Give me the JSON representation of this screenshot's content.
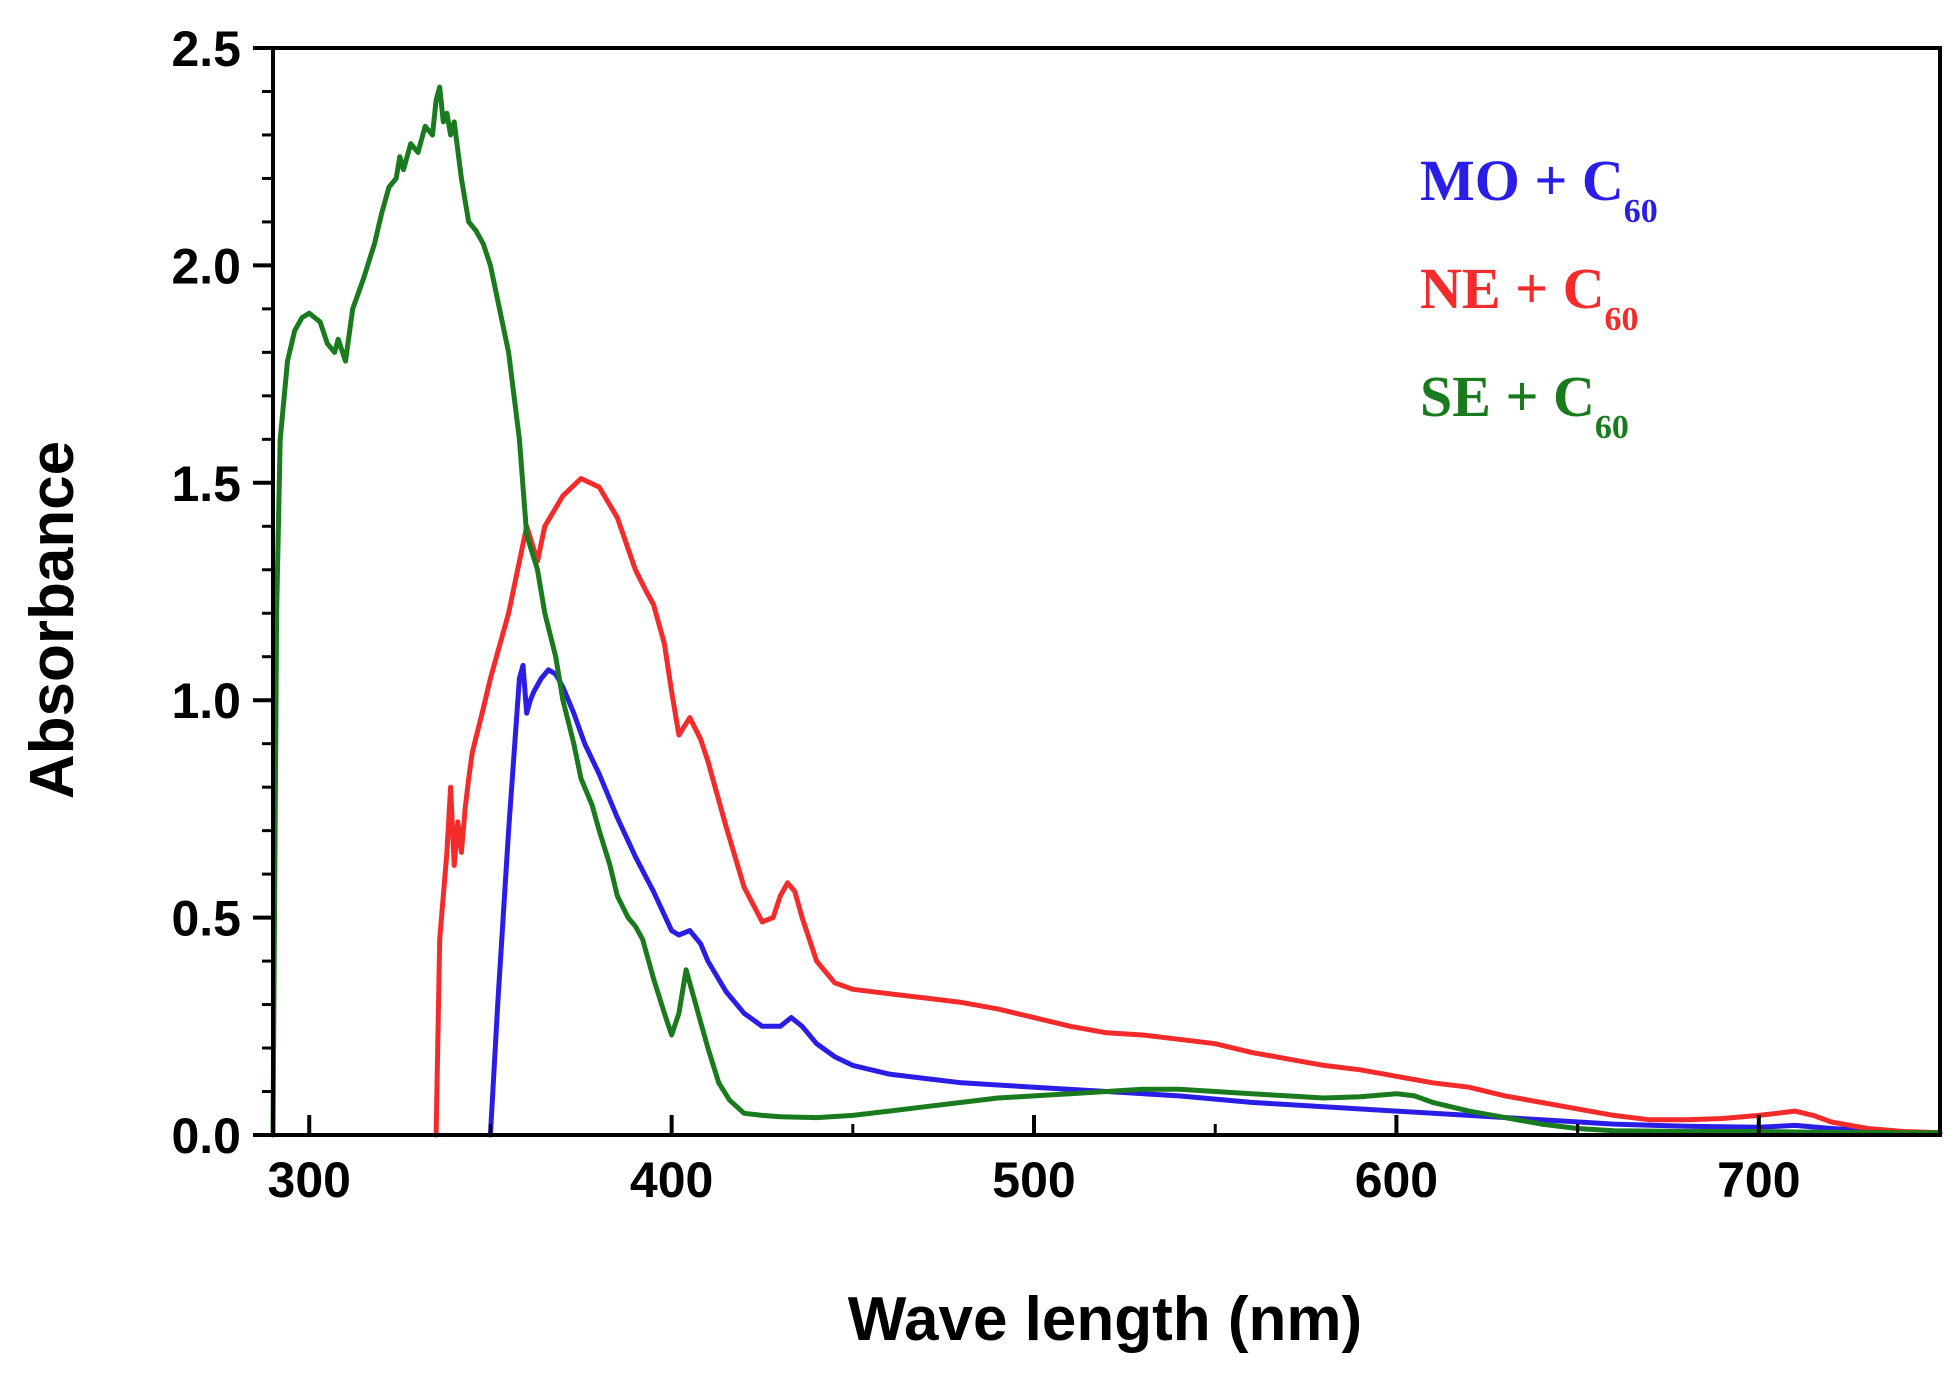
{
  "chart_data": {
    "type": "line",
    "title": "",
    "xlabel": "Wave length (nm)",
    "ylabel": "Absorbance",
    "xlim": [
      290,
      750
    ],
    "ylim": [
      0,
      2.5
    ],
    "x_ticks": [
      300,
      400,
      500,
      600,
      700
    ],
    "y_ticks": [
      0.0,
      0.5,
      1.0,
      1.5,
      2.0,
      2.5
    ],
    "x_tick_labels": [
      "300",
      "400",
      "500",
      "600",
      "700"
    ],
    "y_tick_labels": [
      "0.0",
      "0.5",
      "1.0",
      "1.5",
      "2.0",
      "2.5"
    ],
    "grid": false,
    "legend_position": "top-right",
    "series": [
      {
        "label": "MO + C",
        "label_sub": "60",
        "color": "#2a1ee6",
        "x": [
          350,
          352,
          355,
          358,
          359,
          360,
          361,
          362,
          364,
          366,
          368,
          370,
          373,
          376,
          380,
          385,
          390,
          395,
          400,
          402,
          405,
          408,
          410,
          415,
          420,
          425,
          430,
          433,
          436,
          440,
          445,
          450,
          460,
          470,
          480,
          490,
          500,
          520,
          540,
          560,
          580,
          600,
          620,
          640,
          660,
          680,
          700,
          710,
          720,
          730,
          740,
          750
        ],
        "y": [
          0.0,
          0.3,
          0.7,
          1.05,
          1.08,
          0.97,
          1.0,
          1.02,
          1.05,
          1.07,
          1.06,
          1.03,
          0.97,
          0.9,
          0.83,
          0.73,
          0.64,
          0.56,
          0.47,
          0.46,
          0.47,
          0.44,
          0.4,
          0.33,
          0.28,
          0.25,
          0.25,
          0.27,
          0.25,
          0.21,
          0.18,
          0.16,
          0.14,
          0.13,
          0.12,
          0.115,
          0.11,
          0.1,
          0.09,
          0.075,
          0.065,
          0.055,
          0.045,
          0.035,
          0.025,
          0.02,
          0.018,
          0.022,
          0.015,
          0.01,
          0.005,
          0.005
        ]
      },
      {
        "label": "NE + C",
        "label_sub": "60",
        "color": "#f42b2b",
        "x": [
          335,
          336,
          338,
          339,
          340,
          341,
          342,
          343,
          344,
          345,
          348,
          350,
          355,
          360,
          363,
          365,
          370,
          375,
          380,
          385,
          390,
          393,
          395,
          398,
          400,
          402,
          405,
          408,
          410,
          412,
          415,
          420,
          425,
          428,
          430,
          432,
          434,
          436,
          440,
          445,
          450,
          460,
          470,
          480,
          490,
          500,
          510,
          520,
          530,
          540,
          550,
          560,
          570,
          580,
          590,
          600,
          610,
          620,
          630,
          640,
          650,
          660,
          670,
          680,
          690,
          700,
          705,
          710,
          715,
          720,
          730,
          740,
          750
        ],
        "y": [
          0.0,
          0.45,
          0.65,
          0.8,
          0.62,
          0.72,
          0.65,
          0.75,
          0.82,
          0.88,
          0.98,
          1.05,
          1.2,
          1.4,
          1.32,
          1.4,
          1.47,
          1.51,
          1.49,
          1.42,
          1.3,
          1.25,
          1.22,
          1.13,
          1.02,
          0.92,
          0.96,
          0.91,
          0.86,
          0.8,
          0.71,
          0.57,
          0.49,
          0.5,
          0.55,
          0.58,
          0.56,
          0.5,
          0.4,
          0.35,
          0.335,
          0.325,
          0.315,
          0.305,
          0.29,
          0.27,
          0.25,
          0.235,
          0.23,
          0.22,
          0.21,
          0.19,
          0.175,
          0.16,
          0.15,
          0.135,
          0.12,
          0.11,
          0.09,
          0.075,
          0.06,
          0.045,
          0.035,
          0.035,
          0.038,
          0.045,
          0.05,
          0.055,
          0.045,
          0.03,
          0.015,
          0.008,
          0.005
        ]
      },
      {
        "label": "SE + C",
        "label_sub": "60",
        "color": "#1a7a1e",
        "x": [
          290,
          291,
          292,
          294,
          296,
          298,
          300,
          303,
          305,
          307,
          308,
          310,
          312,
          315,
          318,
          320,
          322,
          324,
          325,
          326,
          328,
          330,
          332,
          334,
          335,
          336,
          337,
          338,
          339,
          340,
          342,
          344,
          346,
          348,
          350,
          352,
          355,
          358,
          360,
          363,
          365,
          368,
          370,
          373,
          375,
          378,
          380,
          383,
          385,
          388,
          390,
          392,
          395,
          398,
          400,
          402,
          404,
          406,
          408,
          410,
          413,
          416,
          420,
          425,
          430,
          440,
          450,
          460,
          470,
          480,
          490,
          500,
          510,
          520,
          530,
          540,
          550,
          560,
          570,
          580,
          590,
          600,
          605,
          610,
          620,
          630,
          640,
          650,
          660,
          680,
          700,
          720,
          740,
          750
        ],
        "y": [
          0.0,
          1.2,
          1.6,
          1.78,
          1.85,
          1.88,
          1.89,
          1.87,
          1.82,
          1.8,
          1.83,
          1.78,
          1.9,
          1.97,
          2.05,
          2.12,
          2.18,
          2.2,
          2.25,
          2.22,
          2.28,
          2.26,
          2.32,
          2.3,
          2.38,
          2.41,
          2.33,
          2.35,
          2.3,
          2.33,
          2.2,
          2.1,
          2.08,
          2.05,
          2.0,
          1.92,
          1.8,
          1.6,
          1.38,
          1.3,
          1.2,
          1.1,
          1.0,
          0.9,
          0.82,
          0.76,
          0.7,
          0.62,
          0.55,
          0.5,
          0.48,
          0.45,
          0.36,
          0.28,
          0.23,
          0.28,
          0.38,
          0.32,
          0.26,
          0.2,
          0.12,
          0.08,
          0.05,
          0.045,
          0.042,
          0.04,
          0.045,
          0.055,
          0.065,
          0.075,
          0.085,
          0.09,
          0.095,
          0.1,
          0.105,
          0.105,
          0.1,
          0.095,
          0.09,
          0.085,
          0.088,
          0.095,
          0.09,
          0.075,
          0.055,
          0.04,
          0.025,
          0.015,
          0.01,
          0.008,
          0.008,
          0.006,
          0.005,
          0.005
        ]
      }
    ]
  }
}
